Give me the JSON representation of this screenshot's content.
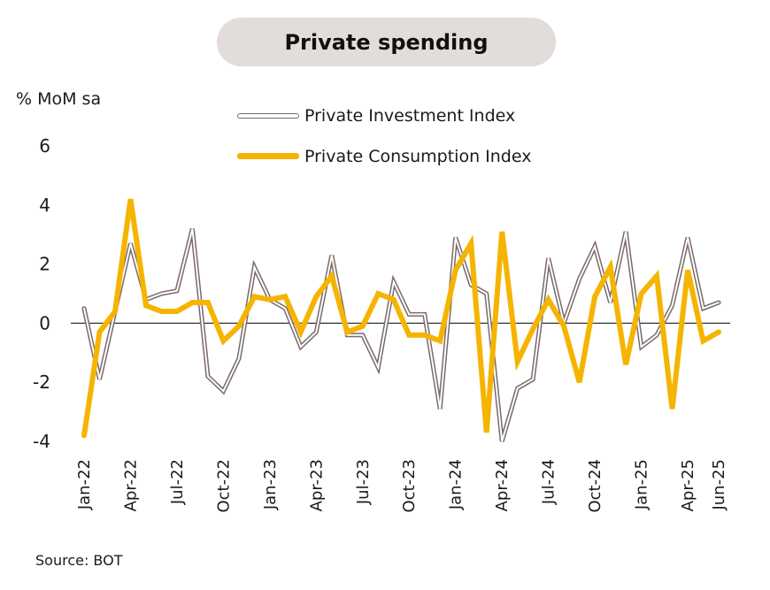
{
  "chart_data": {
    "type": "line",
    "title": "Private spending",
    "ylabel": "% MoM sa",
    "xlabel": "",
    "source": "Source: BOT",
    "ylim": [
      -4,
      6
    ],
    "yticks": [
      -4,
      -2,
      0,
      2,
      4,
      6
    ],
    "ytick_labels": [
      "-4",
      "-2",
      "0",
      "2",
      "4",
      "6"
    ],
    "x": [
      "Jan-22",
      "Feb-22",
      "Mar-22",
      "Apr-22",
      "May-22",
      "Jun-22",
      "Jul-22",
      "Aug-22",
      "Sep-22",
      "Oct-22",
      "Nov-22",
      "Dec-22",
      "Jan-23",
      "Feb-23",
      "Mar-23",
      "Apr-23",
      "May-23",
      "Jun-23",
      "Jul-23",
      "Aug-23",
      "Sep-23",
      "Oct-23",
      "Nov-23",
      "Dec-23",
      "Jan-24",
      "Feb-24",
      "Mar-24",
      "Apr-24",
      "May-24",
      "Jun-24",
      "Jul-24",
      "Aug-24",
      "Sep-24",
      "Oct-24",
      "Nov-24",
      "Dec-24",
      "Jan-25",
      "Feb-25",
      "Mar-25",
      "Apr-25",
      "May-25",
      "Jun-25"
    ],
    "x_tick_labels": [
      "Jan-22",
      "Apr-22",
      "Jul-22",
      "Oct-22",
      "Jan-23",
      "Apr-23",
      "Jul-23",
      "Oct-23",
      "Jan-24",
      "Apr-24",
      "Jul-24",
      "Oct-24",
      "Jan-25",
      "Apr-25",
      "Jun-25"
    ],
    "series": [
      {
        "name": "Private Investment Index",
        "color": "#7a6a6a",
        "values": [
          0.5,
          -1.9,
          0.4,
          2.7,
          0.8,
          1.0,
          1.1,
          3.2,
          -1.8,
          -2.3,
          -1.2,
          1.9,
          0.8,
          0.5,
          -0.8,
          -0.3,
          2.3,
          -0.4,
          -0.4,
          -1.5,
          1.4,
          0.3,
          0.3,
          -2.9,
          2.9,
          1.3,
          1.0,
          -4.0,
          -2.2,
          -1.9,
          2.2,
          0.0,
          1.5,
          2.6,
          0.7,
          3.1,
          -0.8,
          -0.4,
          0.6,
          2.9,
          0.5,
          0.7
        ]
      },
      {
        "name": "Private Consumption Index",
        "color": "#f5b400",
        "values": [
          -3.8,
          -0.3,
          0.4,
          4.2,
          0.6,
          0.4,
          0.4,
          0.7,
          0.7,
          -0.6,
          -0.1,
          0.9,
          0.8,
          0.9,
          -0.3,
          0.9,
          1.6,
          -0.3,
          -0.1,
          1.0,
          0.8,
          -0.4,
          -0.4,
          -0.6,
          1.8,
          2.7,
          -3.7,
          3.1,
          -1.3,
          -0.2,
          0.8,
          -0.1,
          -2.0,
          0.9,
          1.9,
          -1.4,
          1.0,
          1.6,
          -2.9,
          1.8,
          -0.6,
          -0.3
        ]
      }
    ],
    "legend": [
      "Private Investment Index",
      "Private Consumption Index"
    ]
  }
}
